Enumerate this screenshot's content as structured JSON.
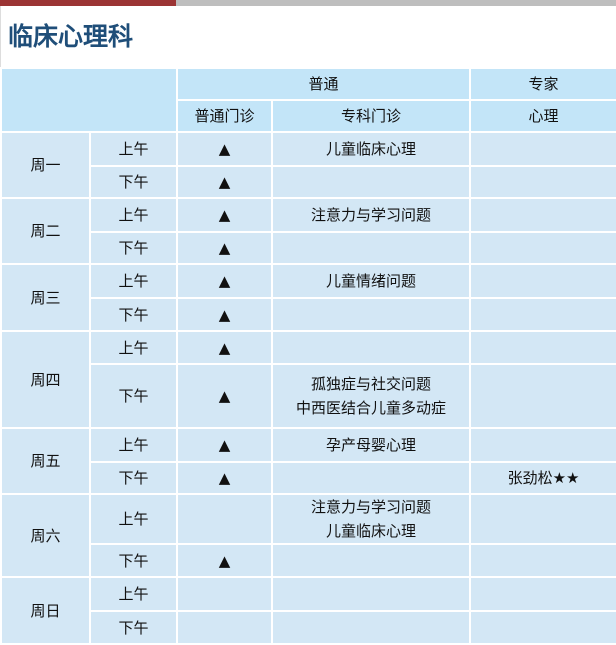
{
  "title": "临床心理科",
  "header": {
    "group1": "普通",
    "group2": "专家",
    "col1": "普通门诊",
    "col2": "专科门诊",
    "col3": "心理"
  },
  "days": [
    {
      "day": "周一",
      "rows": [
        {
          "period": "上午",
          "general": "▲",
          "special": [
            "儿童临床心理"
          ],
          "expert": ""
        },
        {
          "period": "下午",
          "general": "▲",
          "special": [],
          "expert": ""
        }
      ]
    },
    {
      "day": "周二",
      "rows": [
        {
          "period": "上午",
          "general": "▲",
          "special": [
            "注意力与学习问题"
          ],
          "expert": ""
        },
        {
          "period": "下午",
          "general": "▲",
          "special": [],
          "expert": ""
        }
      ]
    },
    {
      "day": "周三",
      "rows": [
        {
          "period": "上午",
          "general": "▲",
          "special": [
            "儿童情绪问题"
          ],
          "expert": ""
        },
        {
          "period": "下午",
          "general": "▲",
          "special": [],
          "expert": ""
        }
      ]
    },
    {
      "day": "周四",
      "rows": [
        {
          "period": "上午",
          "general": "▲",
          "special": [],
          "expert": ""
        },
        {
          "period": "下午",
          "general": "▲",
          "special": [
            "孤独症与社交问题",
            "中西医结合儿童多动症"
          ],
          "expert": ""
        }
      ]
    },
    {
      "day": "周五",
      "rows": [
        {
          "period": "上午",
          "general": "▲",
          "special": [
            "孕产母婴心理"
          ],
          "expert": ""
        },
        {
          "period": "下午",
          "general": "▲",
          "special": [],
          "expert": "张劲松★★"
        }
      ]
    },
    {
      "day": "周六",
      "rows": [
        {
          "period": "上午",
          "general": "",
          "special": [
            "注意力与学习问题",
            "儿童临床心理"
          ],
          "expert": ""
        },
        {
          "period": "下午",
          "general": "▲",
          "special": [],
          "expert": ""
        }
      ]
    },
    {
      "day": "周日",
      "rows": [
        {
          "period": "上午",
          "general": "",
          "special": [],
          "expert": ""
        },
        {
          "period": "下午",
          "general": "",
          "special": [],
          "expert": ""
        }
      ]
    }
  ]
}
